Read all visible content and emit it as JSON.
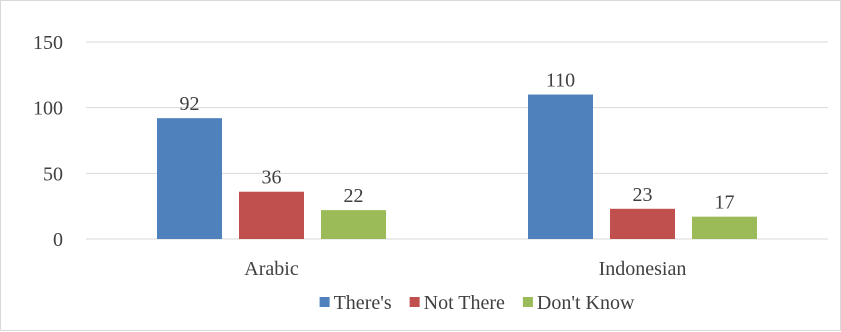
{
  "chart_data": {
    "type": "bar",
    "categories": [
      "Arabic",
      "Indonesian"
    ],
    "series": [
      {
        "name": "There's",
        "values": [
          92,
          110
        ],
        "color": "#4f81bd"
      },
      {
        "name": "Not There",
        "values": [
          36,
          23
        ],
        "color": "#c0504d"
      },
      {
        "name": "Don't Know",
        "values": [
          22,
          17
        ],
        "color": "#9bbb59"
      }
    ],
    "yticks": [
      0,
      50,
      100,
      150
    ],
    "ylim": [
      0,
      150
    ],
    "grid": true,
    "legend": "bottom",
    "data_labels": true,
    "gridline_color": "#d9d9d9",
    "axis_color": "#d9d9d9"
  }
}
